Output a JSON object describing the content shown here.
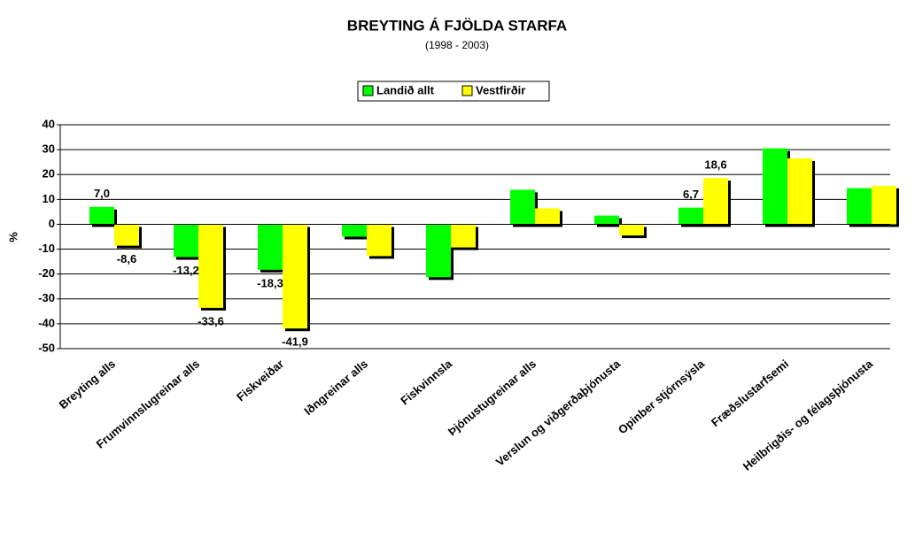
{
  "chart_data": {
    "type": "bar",
    "title": "BREYTING Á FJÖLDA STARFA",
    "subtitle": "(1998 - 2003)",
    "ylabel": "%",
    "categories": [
      "Breyting alls",
      "Frumvinnslugreinar alls",
      "Fiskveiðar",
      "Iðngreinar alls",
      "Fiskvinnsla",
      "Þjónustugreinar alls",
      "Verslun og viðgerðaþjónusta",
      "Opinber stjórnsýsla",
      "Fræðslustarfsemi",
      "Heilbrigðis- og félagsþjónusta"
    ],
    "series": [
      {
        "name": "Landið allt",
        "color": "#00ff00",
        "values": [
          7.0,
          -13.2,
          -18.3,
          -5,
          -21.3,
          13.9,
          3.5,
          6.7,
          30.5,
          14.5
        ],
        "value_labels": [
          "7,0",
          "-13,2",
          "-18,3",
          null,
          null,
          null,
          null,
          "6,7",
          null,
          null
        ]
      },
      {
        "name": "Vestfirðir",
        "color": "#ffff00",
        "values": [
          -8.6,
          -33.6,
          -41.9,
          -12.8,
          -9.3,
          6.4,
          -4.5,
          18.6,
          26.5,
          15.5
        ],
        "value_labels": [
          "-8,6",
          "-33,6",
          "-41,9",
          null,
          null,
          null,
          null,
          "18,6",
          null,
          null
        ]
      }
    ],
    "ylim": [
      -50,
      40
    ],
    "yticks": [
      -50,
      -40,
      -30,
      -20,
      -10,
      0,
      10,
      20,
      30,
      40
    ],
    "grid": true
  }
}
